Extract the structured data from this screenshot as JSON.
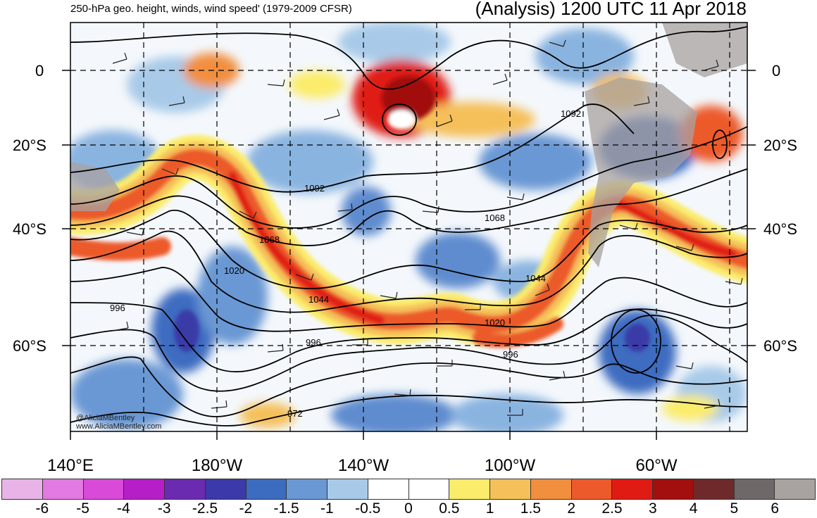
{
  "title_left": "250-hPa geo. height, winds, wind speed' (1979-2009 CFSR)",
  "title_right": "(Analysis) 1200 UTC 11 Apr 2018",
  "lat_labels": [
    "0",
    "20°S",
    "40°S",
    "60°S"
  ],
  "lon_labels": [
    "140°E",
    "180°W",
    "140°W",
    "100°W",
    "60°W"
  ],
  "contour_labels": [
    "1092",
    "1092",
    "1068",
    "1068",
    "1044",
    "1044",
    "1020",
    "1020",
    "996",
    "996",
    "996",
    "972"
  ],
  "credit": [
    "@AliciaMBentley",
    "www.AliciaMBentley.com"
  ],
  "colorbar": {
    "ticks": [
      "-6",
      "-5",
      "-4",
      "-3",
      "-2.5",
      "-2",
      "-1.5",
      "-1",
      "-0.5",
      "0",
      "0.5",
      "1",
      "1.5",
      "2",
      "2.5",
      "3",
      "4",
      "5",
      "6"
    ],
    "colors": [
      "#e8b4e8",
      "#e27ae2",
      "#d94ad9",
      "#b61ec8",
      "#6a2bb0",
      "#3b3aa8",
      "#3c6cc0",
      "#6a98d4",
      "#a8cae8",
      "#ffffff",
      "#ffffff",
      "#fbec6c",
      "#f5c05a",
      "#f18f3f",
      "#ec5a2c",
      "#e01b14",
      "#a10f0f",
      "#6e2a2a",
      "#6e6868",
      "#a8a2a0"
    ]
  }
}
